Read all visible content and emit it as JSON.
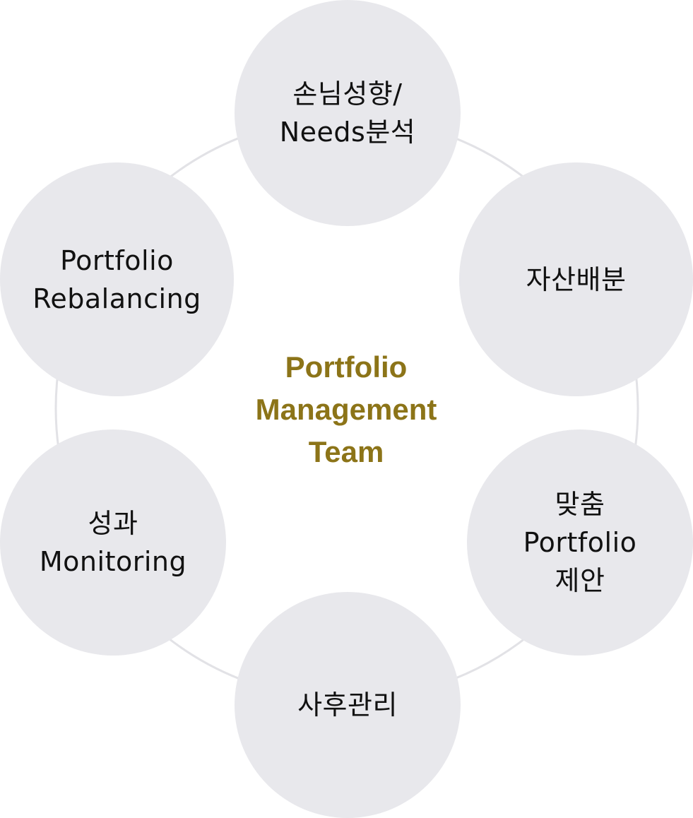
{
  "center": {
    "title": "Portfolio\nManagement\nTeam",
    "color": "#8c7418"
  },
  "ring_color": "#e2e2e6",
  "node_color": "#e8e8ec",
  "nodes": [
    {
      "label": "손님성향/\nNeeds분석"
    },
    {
      "label": "자산배분"
    },
    {
      "label": "맞춤\nPortfolio\n제안"
    },
    {
      "label": "사후관리"
    },
    {
      "label": "성과\nMonitoring"
    },
    {
      "label": "Portfolio\nRebalancing"
    }
  ]
}
